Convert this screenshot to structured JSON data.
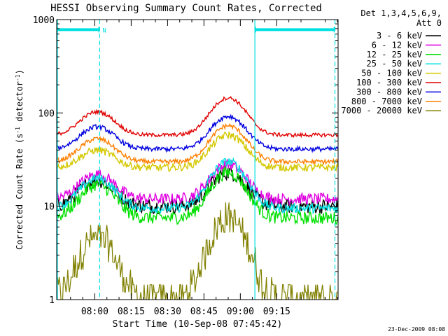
{
  "chart_data": {
    "type": "line",
    "title": "HESSI Observing Summary Count Rates, Corrected",
    "xlabel": "Start Time (10-Sep-08 07:45:42)",
    "ylabel_main": "Corrected Count Rate (s",
    "ylabel_sup1": "-1",
    "ylabel_mid": " detector",
    "ylabel_sup2": "-1",
    "ylabel_end": ")",
    "yscale": "log",
    "ylim": [
      1,
      1000
    ],
    "y_ticks": [
      {
        "value": 1,
        "label": "1"
      },
      {
        "value": 10,
        "label": "10"
      },
      {
        "value": 100,
        "label": "100"
      },
      {
        "value": 1000,
        "label": "1000"
      }
    ],
    "xlim_minutes": [
      -15.7,
      100.3
    ],
    "x_ticks": [
      {
        "minute": 0,
        "label": "08:00"
      },
      {
        "minute": 15,
        "label": "08:15"
      },
      {
        "minute": 30,
        "label": "08:30"
      },
      {
        "minute": 45,
        "label": "08:45"
      },
      {
        "minute": 60,
        "label": "09:00"
      },
      {
        "minute": 75,
        "label": "09:15"
      }
    ],
    "legend_header": [
      "Det 1,3,4,5,6,9,",
      "Att 0"
    ],
    "legend_position": "right",
    "series": [
      {
        "name": "3 - 6 keV",
        "color": "#000000",
        "baseline": 10,
        "peaks": [
          19,
          23
        ],
        "noise": 0.08
      },
      {
        "name": "6 - 12 keV",
        "color": "#e000e0",
        "baseline": 12,
        "peaks": [
          22,
          28
        ],
        "noise": 0.06
      },
      {
        "name": "12 - 25 keV",
        "color": "#00e000",
        "baseline": 7.5,
        "peaks": [
          17,
          23
        ],
        "noise": 0.07
      },
      {
        "name": "25 - 50 keV",
        "color": "#00e0e0",
        "baseline": 9.5,
        "peaks": [
          20,
          30
        ],
        "noise": 0.05
      },
      {
        "name": "50 - 100 keV",
        "color": "#d4c800",
        "baseline": 26,
        "peaks": [
          40,
          58
        ],
        "noise": 0.04
      },
      {
        "name": "100 - 300 keV",
        "color": "#e00000",
        "baseline": 58,
        "peaks": [
          103,
          145
        ],
        "noise": 0.02
      },
      {
        "name": "300 - 800 keV",
        "color": "#0000e0",
        "baseline": 41,
        "peaks": [
          71,
          92
        ],
        "noise": 0.025
      },
      {
        "name": "800 - 7000 keV",
        "color": "#ff8000",
        "baseline": 30,
        "peaks": [
          53,
          73
        ],
        "noise": 0.025
      },
      {
        "name": "7000 - 20000 keV",
        "color": "#808000",
        "baseline": 1,
        "peaks": [
          4.5,
          7.5
        ],
        "noise": 0.18
      }
    ],
    "orbit_peaks_minutes": [
      1,
      55
    ],
    "saa_bars": [
      {
        "start": -15.7,
        "end": 2,
        "value": 780,
        "label": "N"
      },
      {
        "start": 66,
        "end": 99,
        "value": 780
      }
    ],
    "vertical_lines_solid": [
      -15.7,
      66
    ],
    "vertical_lines_dashed": [
      2,
      99
    ],
    "saa_color": "#00e0e0"
  },
  "footer": {
    "date_stamp": "23-Dec-2009 08:08"
  }
}
